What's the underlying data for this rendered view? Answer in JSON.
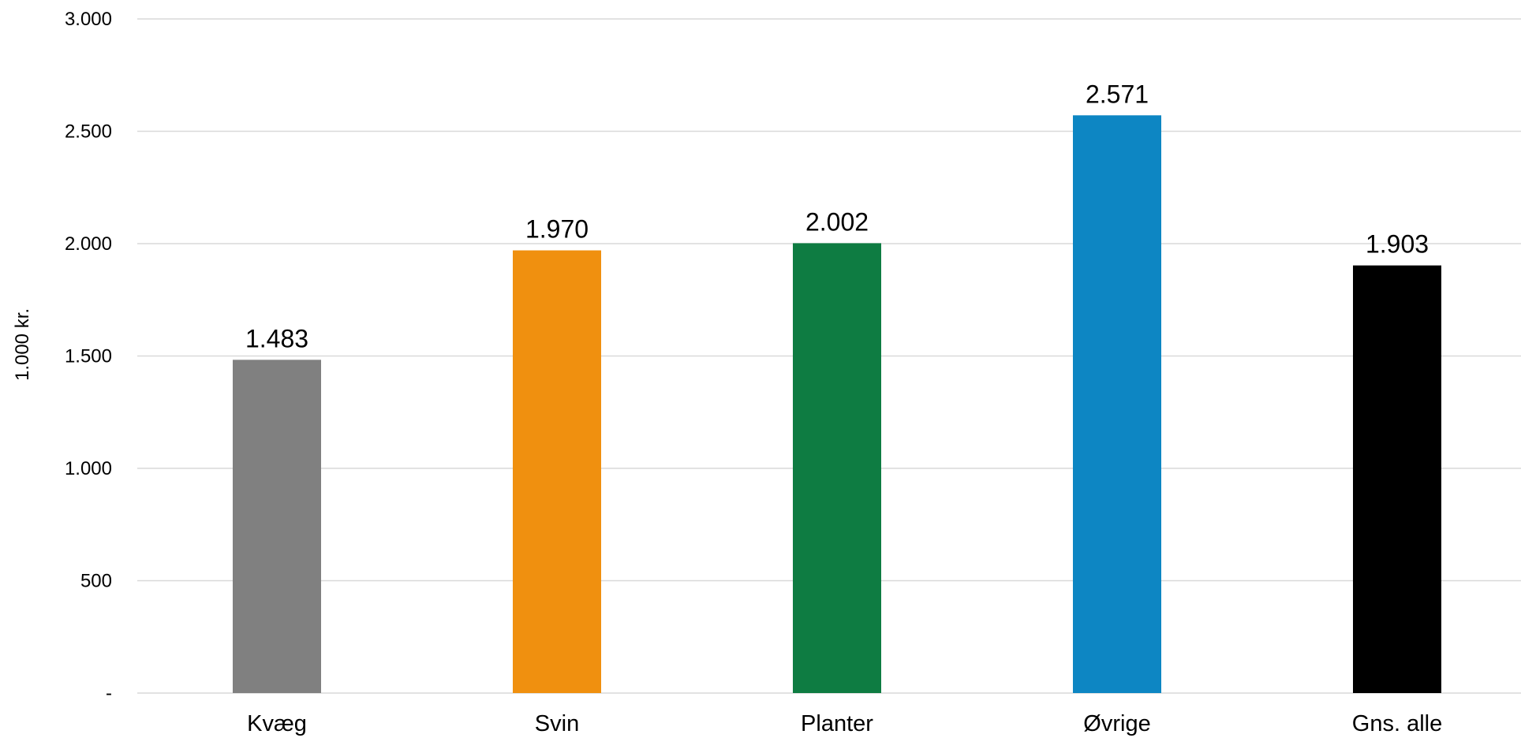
{
  "chart_data": {
    "type": "bar",
    "ylabel": "1.000 kr.",
    "categories": [
      "Kvæg",
      "Svin",
      "Planter",
      "Øvrige",
      "Gns. alle"
    ],
    "values": [
      1483,
      1970,
      2002,
      2571,
      1903
    ],
    "value_labels": [
      "1.483",
      "1.970",
      "2.002",
      "2.571",
      "1.903"
    ],
    "colors": [
      "#808080",
      "#f0900f",
      "#0e7c42",
      "#0d86c3",
      "#000000"
    ],
    "ylim": [
      0,
      3000
    ],
    "yticks": [
      0,
      500,
      1000,
      1500,
      2000,
      2500,
      3000
    ],
    "ytick_labels": [
      "-",
      "500",
      "1.000",
      "1.500",
      "2.000",
      "2.500",
      "3.000"
    ],
    "grid": true,
    "legend": "none"
  }
}
